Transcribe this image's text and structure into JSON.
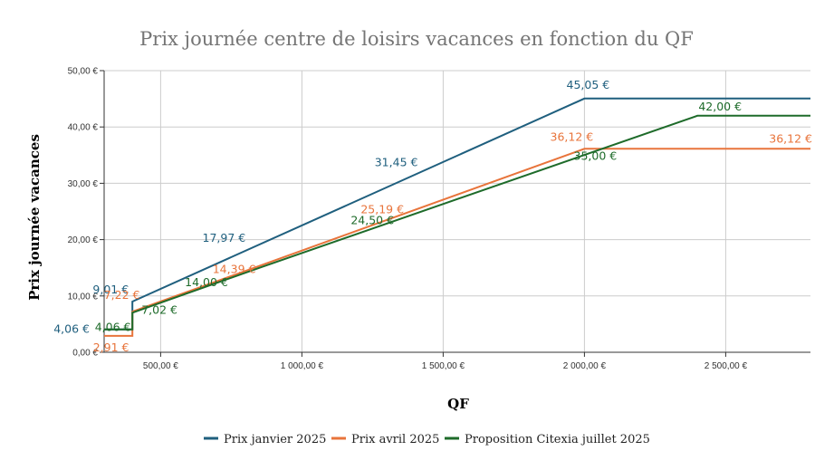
{
  "chart_data": {
    "type": "line",
    "title": "Prix journée centre de loisirs vacances en fonction du QF",
    "xlabel": "QF",
    "ylabel": "Prix journée vacances",
    "xlim": [
      300,
      2800
    ],
    "ylim": [
      0,
      50
    ],
    "x_ticks": [
      {
        "value": 500,
        "label": "500,00 €"
      },
      {
        "value": 1000,
        "label": "1 000,00 €"
      },
      {
        "value": 1500,
        "label": "1 500,00 €"
      },
      {
        "value": 2000,
        "label": "2 000,00 €"
      },
      {
        "value": 2500,
        "label": "2 500,00 €"
      }
    ],
    "y_ticks": [
      {
        "value": 0,
        "label": "0,00 €"
      },
      {
        "value": 10,
        "label": "10,00 €"
      },
      {
        "value": 20,
        "label": "20,00 €"
      },
      {
        "value": 30,
        "label": "30,00 €"
      },
      {
        "value": 40,
        "label": "40,00 €"
      },
      {
        "value": 50,
        "label": "50,00 €"
      }
    ],
    "grid": true,
    "legend_position": "bottom",
    "series": [
      {
        "name": "Prix janvier 2025",
        "color": "#1f5f7e",
        "points": [
          [
            300,
            4.06
          ],
          [
            400,
            4.06
          ],
          [
            400,
            9.01
          ],
          [
            2000,
            45.05
          ],
          [
            2800,
            45.05
          ]
        ],
        "labels": [
          {
            "x": 300,
            "y": 4.06,
            "text": "4,06 €"
          },
          {
            "x": 400,
            "y": 9.01,
            "text": "9,01 €"
          },
          {
            "x": 750,
            "y": 17.97,
            "text": "17,97 €"
          },
          {
            "x": 1350,
            "y": 31.45,
            "text": "31,45 €"
          },
          {
            "x": 2000,
            "y": 45.05,
            "text": "45,05 €"
          }
        ]
      },
      {
        "name": "Prix avril 2025",
        "color": "#e8743b",
        "points": [
          [
            300,
            2.91
          ],
          [
            400,
            2.91
          ],
          [
            400,
            7.22
          ],
          [
            2000,
            36.12
          ],
          [
            2800,
            36.12
          ]
        ],
        "labels": [
          {
            "x": 350,
            "y": 2.91,
            "text": "2,91 €"
          },
          {
            "x": 350,
            "y": 7.22,
            "text": "7,22 €"
          },
          {
            "x": 850,
            "y": 14.39,
            "text": "14,39 €"
          },
          {
            "x": 1400,
            "y": 25.19,
            "text": "25,19 €"
          },
          {
            "x": 2000,
            "y": 36.12,
            "text": "36,12 €"
          },
          {
            "x": 2800,
            "y": 36.12,
            "text": "36,12 €"
          }
        ]
      },
      {
        "name": "Proposition Citexia juillet 2025",
        "color": "#1e6b2a",
        "points": [
          [
            300,
            4.06
          ],
          [
            400,
            4.06
          ],
          [
            400,
            7.02
          ],
          [
            850,
            15.0
          ],
          [
            2400,
            42.0
          ],
          [
            2800,
            42.0
          ]
        ],
        "labels": [
          {
            "x": 350,
            "y": 4.06,
            "text": "4,06 €"
          },
          {
            "x": 400,
            "y": 7.02,
            "text": "7,02 €"
          },
          {
            "x": 800,
            "y": 14.0,
            "text": "14,00 €"
          },
          {
            "x": 1400,
            "y": 24.5,
            "text": "24,50 €"
          },
          {
            "x": 2000,
            "y": 35.0,
            "text": "35,00 €"
          },
          {
            "x": 2400,
            "y": 42.0,
            "text": "42,00 €"
          }
        ]
      }
    ]
  }
}
